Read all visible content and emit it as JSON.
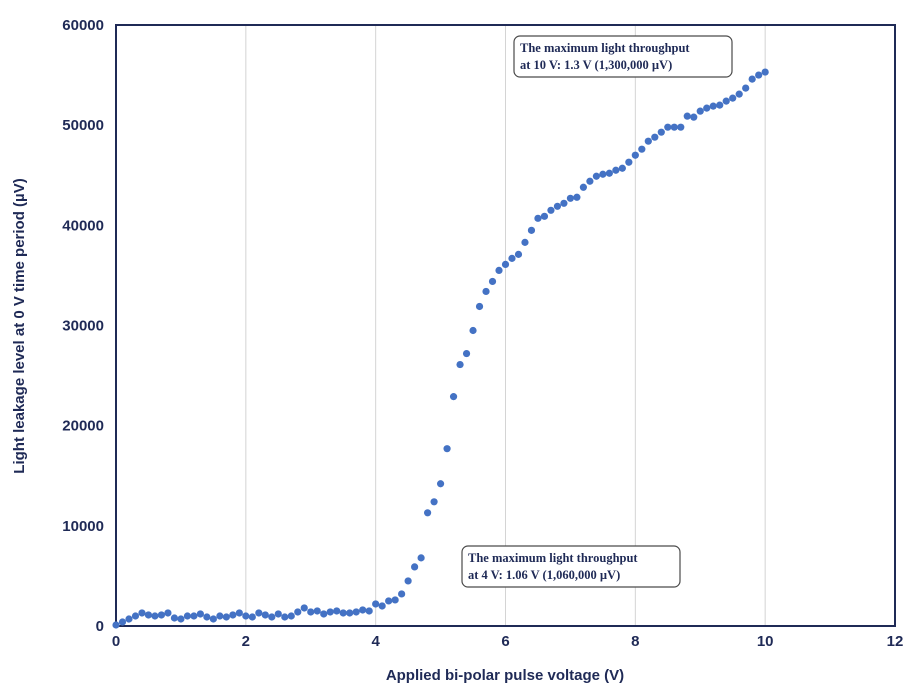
{
  "chart_data": {
    "type": "scatter",
    "xlabel": "Applied bi-polar pulse voltage (V)",
    "ylabel": "Light leakage level at 0 V time period (µV)",
    "xlim": [
      0,
      12
    ],
    "ylim": [
      0,
      60000
    ],
    "x_ticks": [
      "0",
      "2",
      "4",
      "6",
      "8",
      "10",
      "12"
    ],
    "y_ticks": [
      "0",
      "10000",
      "20000",
      "30000",
      "40000",
      "50000",
      "60000"
    ],
    "grid": "vertical",
    "marker_color": "#4472c4",
    "annotations": [
      {
        "line1": "The maximum light throughput",
        "line2": "at 10 V: 1.3 V (1,300,000 µV)"
      },
      {
        "line1": "The maximum light throughput",
        "line2": "at 4 V: 1.06 V (1,060,000 µV)"
      }
    ],
    "x": [
      0.0,
      0.1,
      0.2,
      0.3,
      0.4,
      0.5,
      0.6,
      0.7,
      0.8,
      0.9,
      1.0,
      1.1,
      1.2,
      1.3,
      1.4,
      1.5,
      1.6,
      1.7,
      1.8,
      1.9,
      2.0,
      2.1,
      2.2,
      2.3,
      2.4,
      2.5,
      2.6,
      2.7,
      2.8,
      2.9,
      3.0,
      3.1,
      3.2,
      3.3,
      3.4,
      3.5,
      3.6,
      3.7,
      3.8,
      3.9,
      4.0,
      4.1,
      4.2,
      4.3,
      4.4,
      4.5,
      4.6,
      4.7,
      4.8,
      4.9,
      5.0,
      5.1,
      5.2,
      5.3,
      5.4,
      5.5,
      5.6,
      5.7,
      5.8,
      5.9,
      6.0,
      6.1,
      6.2,
      6.3,
      6.4,
      6.5,
      6.6,
      6.7,
      6.8,
      6.9,
      7.0,
      7.1,
      7.2,
      7.3,
      7.4,
      7.5,
      7.6,
      7.7,
      7.8,
      7.9,
      8.0,
      8.1,
      8.2,
      8.3,
      8.4,
      8.5,
      8.6,
      8.7,
      8.8,
      8.9,
      9.0,
      9.1,
      9.2,
      9.3,
      9.4,
      9.5,
      9.6,
      9.7,
      9.8,
      9.9,
      10.0
    ],
    "y": [
      100,
      400,
      700,
      1000,
      1300,
      1100,
      1000,
      1100,
      1300,
      800,
      700,
      1000,
      1000,
      1200,
      900,
      700,
      1000,
      900,
      1100,
      1300,
      1000,
      900,
      1300,
      1100,
      900,
      1200,
      900,
      1000,
      1400,
      1800,
      1400,
      1500,
      1200,
      1400,
      1500,
      1300,
      1300,
      1400,
      1600,
      1500,
      2200,
      2000,
      2500,
      2600,
      3200,
      4500,
      5900,
      6800,
      11300,
      12400,
      14200,
      17700,
      22900,
      26100,
      27200,
      29500,
      31900,
      33400,
      34400,
      35500,
      36100,
      36700,
      37100,
      38300,
      39500,
      40700,
      40900,
      41500,
      41900,
      42200,
      42700,
      42800,
      43800,
      44400,
      44900,
      45100,
      45200,
      45500,
      45700,
      46300,
      47000,
      47600,
      48400,
      48800,
      49300,
      49800,
      49800,
      49800,
      50900,
      50800,
      51400,
      51700,
      51900,
      52000,
      52400,
      52700,
      53100,
      53700,
      54600,
      55000,
      55300
    ]
  }
}
